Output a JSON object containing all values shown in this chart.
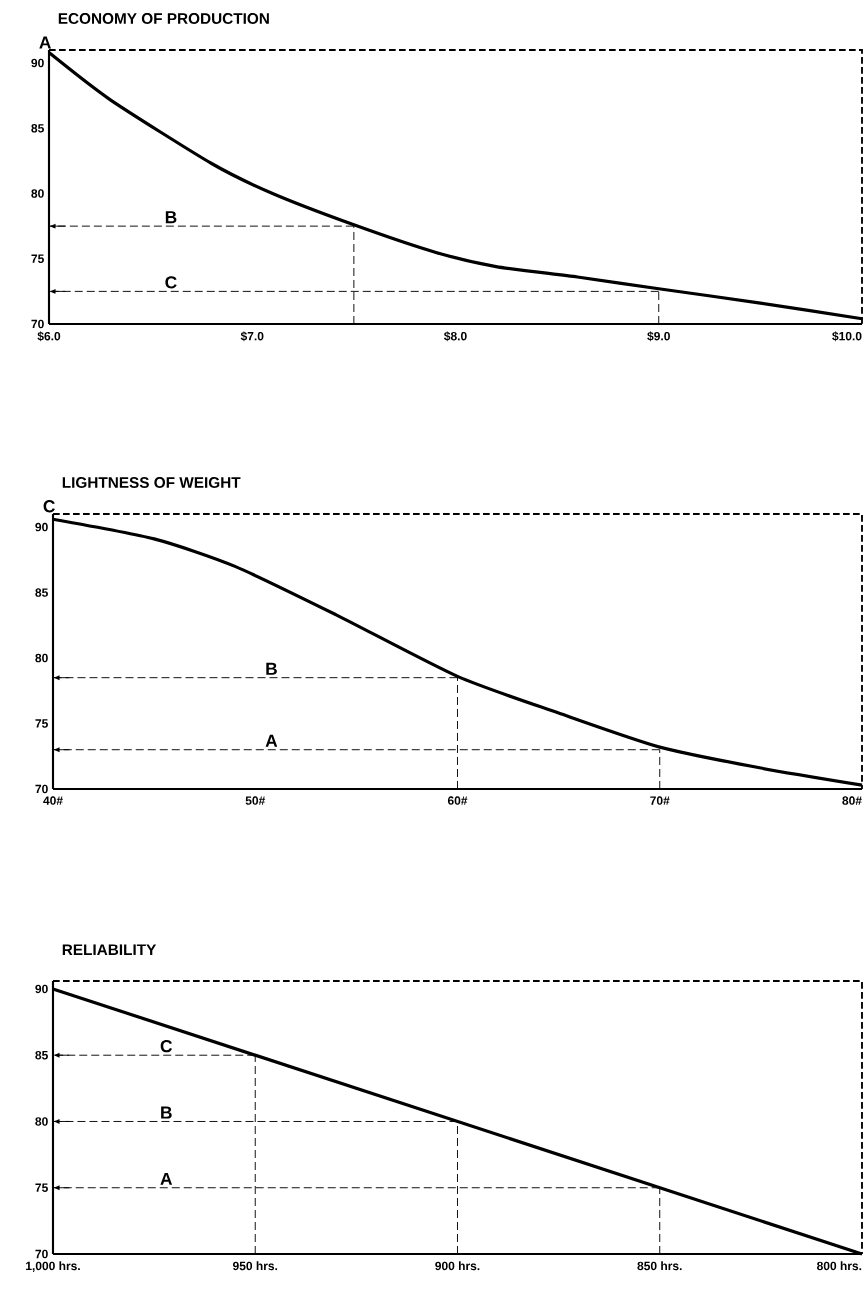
{
  "chart_data": [
    {
      "type": "line",
      "title": "ECONOMY OF PRODUCTION",
      "xlim": [
        6.0,
        10.0
      ],
      "xticks": [
        {
          "value": 6,
          "label": "$6.0"
        },
        {
          "value": 7,
          "label": "$7.0"
        },
        {
          "value": 8,
          "label": "$8.0"
        },
        {
          "value": 9,
          "label": "$9.0"
        },
        {
          "value": 10,
          "label": "$10.0"
        }
      ],
      "ylim": [
        70,
        91
      ],
      "yticks": [
        70,
        75,
        80,
        85,
        90
      ],
      "series": [
        {
          "x": [
            6.0,
            6.3,
            6.8,
            7.1,
            7.5,
            7.9,
            8.2,
            8.6,
            9.0,
            9.5,
            10.0
          ],
          "values": [
            90.8,
            87.2,
            82.3,
            80.0,
            77.6,
            75.5,
            74.4,
            73.6,
            72.7,
            71.6,
            70.4
          ],
          "color": "#000000",
          "line_style": "solid"
        }
      ],
      "ref_lines": [
        {
          "axis": "x",
          "value": 7.5,
          "line_style": "dashed"
        },
        {
          "axis": "x",
          "value": 9.0,
          "line_style": "dashed"
        },
        {
          "axis": "y",
          "value": 77.5,
          "label": "B",
          "line_style": "dashed"
        },
        {
          "axis": "y",
          "value": 72.5,
          "label": "C",
          "line_style": "dashed"
        }
      ],
      "annotations": [
        "A"
      ]
    },
    {
      "type": "line",
      "title": "LIGHTNESS OF WEIGHT",
      "xlim": [
        40,
        80
      ],
      "xticks": [
        {
          "value": 40,
          "label": "40#"
        },
        {
          "value": 50,
          "label": "50#"
        },
        {
          "value": 60,
          "label": "60#"
        },
        {
          "value": 70,
          "label": "70#"
        },
        {
          "value": 80,
          "label": "80#"
        }
      ],
      "ylim": [
        70,
        91
      ],
      "yticks": [
        70,
        75,
        80,
        85,
        90
      ],
      "series": [
        {
          "x": [
            40,
            45,
            49,
            54,
            60,
            65,
            70,
            75,
            80
          ],
          "values": [
            90.6,
            89.1,
            87.0,
            83.3,
            78.6,
            75.8,
            73.2,
            71.6,
            70.3
          ],
          "color": "#000000",
          "line_style": "solid"
        }
      ],
      "ref_lines": [
        {
          "axis": "x",
          "value": 60,
          "line_style": "dashed"
        },
        {
          "axis": "x",
          "value": 70,
          "line_style": "dashed"
        },
        {
          "axis": "y",
          "value": 78.5,
          "label": "B",
          "line_style": "dashed"
        },
        {
          "axis": "y",
          "value": 73.0,
          "label": "A",
          "line_style": "dashed"
        }
      ],
      "annotations": [
        "C"
      ]
    },
    {
      "type": "line",
      "title": "RELIABILITY",
      "xlim": [
        1000,
        800
      ],
      "xticks": [
        {
          "value": 1000,
          "label": "1,000 hrs."
        },
        {
          "value": 950,
          "label": "950 hrs."
        },
        {
          "value": 900,
          "label": "900 hrs."
        },
        {
          "value": 850,
          "label": "850 hrs."
        },
        {
          "value": 800,
          "label": "800 hrs."
        }
      ],
      "ylim": [
        70,
        90.6
      ],
      "yticks": [
        70,
        75,
        80,
        85,
        90
      ],
      "series": [
        {
          "x": [
            1000,
            800
          ],
          "values": [
            90,
            70
          ],
          "color": "#000000",
          "line_style": "solid"
        }
      ],
      "ref_lines": [
        {
          "axis": "x",
          "value": 950,
          "line_style": "dashed"
        },
        {
          "axis": "x",
          "value": 900,
          "line_style": "dashed"
        },
        {
          "axis": "x",
          "value": 850,
          "line_style": "dashed"
        },
        {
          "axis": "y",
          "value": 85,
          "label": "C",
          "line_style": "dashed"
        },
        {
          "axis": "y",
          "value": 80,
          "label": "B",
          "line_style": "dashed"
        },
        {
          "axis": "y",
          "value": 75,
          "label": "A",
          "line_style": "dashed"
        }
      ]
    }
  ]
}
